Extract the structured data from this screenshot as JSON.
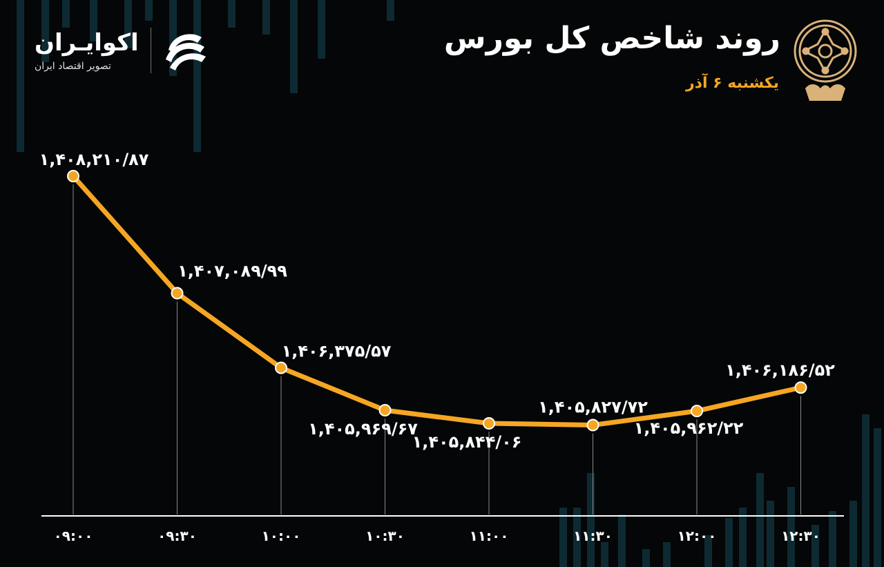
{
  "header": {
    "title": "روند شاخص کل بورس",
    "subtitle": "یکشنبه ۶ آذر",
    "brand_name": "اکوایـران",
    "brand_tagline": "تصویر اقتصاد ایران",
    "seal_icon": "stock-exchange-seal-icon",
    "brand_icon": "ecoiran-logo-icon"
  },
  "colors": {
    "background": "#050607",
    "line": "#f5a623",
    "marker_fill": "#f5a623",
    "marker_stroke": "#ffffff",
    "label": "#ffffff",
    "subtitle": "#f5a623",
    "drop_line": "#8a8a8a",
    "axis": "#ffffff",
    "decor_bars": "#0d2a33"
  },
  "chart_data": {
    "type": "line",
    "title": "روند شاخص کل بورس",
    "xlabel": "",
    "ylabel": "",
    "categories": [
      "۰۹:۰۰",
      "۰۹:۳۰",
      "۱۰:۰۰",
      "۱۰:۳۰",
      "۱۱:۰۰",
      "۱۱:۳۰",
      "۱۲:۰۰",
      "۱۲:۳۰"
    ],
    "values": [
      1408210.87,
      1407089.99,
      1406375.57,
      1405969.67,
      1405844.06,
      1405827.72,
      1405962.22,
      1406186.52
    ],
    "value_labels": [
      "۱,۴۰۸,۲۱۰/۸۷",
      "۱,۴۰۷,۰۸۹/۹۹",
      "۱,۴۰۶,۳۷۵/۵۷",
      "۱,۴۰۵,۹۶۹/۶۷",
      "۱,۴۰۵,۸۴۴/۰۶",
      "۱,۴۰۵,۸۲۷/۷۲",
      "۱,۴۰۵,۹۶۲/۲۲",
      "۱,۴۰۶,۱۸۶/۵۲"
    ],
    "grid": false,
    "legend": "none"
  }
}
